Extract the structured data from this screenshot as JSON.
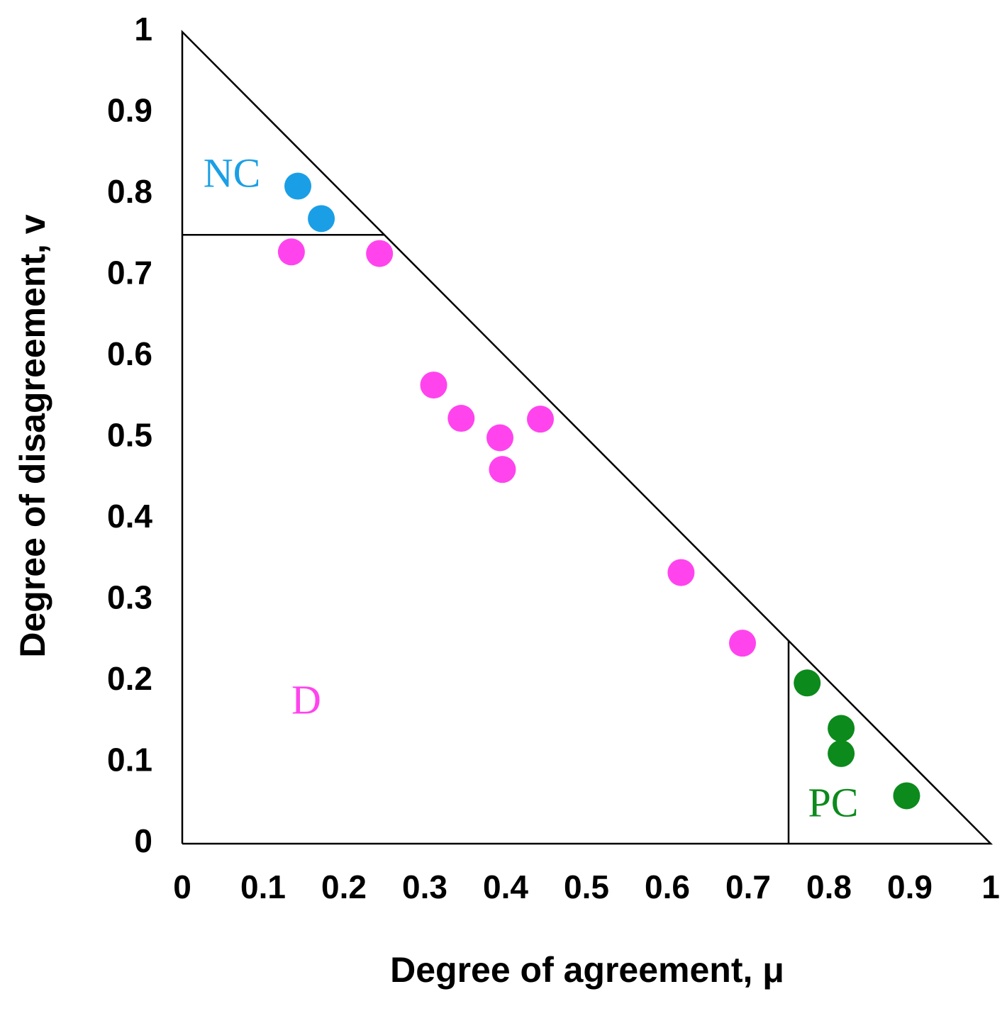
{
  "chart_data": {
    "type": "scatter",
    "x_label": "Degree of agreement, μ",
    "y_label": "Degree of disagreement, v",
    "xlim": [
      0,
      1
    ],
    "ylim": [
      0,
      1
    ],
    "xticks": [
      0,
      0.1,
      0.2,
      0.3,
      0.4,
      0.5,
      0.6,
      0.7,
      0.8,
      0.9,
      1
    ],
    "yticks": [
      0,
      0.1,
      0.2,
      0.3,
      0.4,
      0.5,
      0.6,
      0.7,
      0.8,
      0.9,
      1
    ],
    "lines": [
      {
        "x": [
          0,
          0,
          1,
          0
        ],
        "y": [
          0,
          1,
          0,
          0
        ]
      },
      {
        "x": [
          0,
          0.25
        ],
        "y": [
          0.75,
          0.75
        ]
      },
      {
        "x": [
          0.75,
          0.75
        ],
        "y": [
          0,
          0.25
        ]
      }
    ],
    "series": [
      {
        "name": "NC",
        "color": "#1a9fe6",
        "x": [
          0.143,
          0.172
        ],
        "values": [
          0.81,
          0.77
        ]
      },
      {
        "name": "D",
        "color": "#ff44ee",
        "x": [
          0.135,
          0.244,
          0.311,
          0.345,
          0.393,
          0.396,
          0.443,
          0.617,
          0.693
        ],
        "values": [
          0.729,
          0.727,
          0.565,
          0.524,
          0.5,
          0.461,
          0.523,
          0.334,
          0.247
        ]
      },
      {
        "name": "PC",
        "color": "#0c8a1c",
        "x": [
          0.773,
          0.815,
          0.815,
          0.896
        ],
        "values": [
          0.198,
          0.142,
          0.111,
          0.059
        ]
      }
    ]
  }
}
